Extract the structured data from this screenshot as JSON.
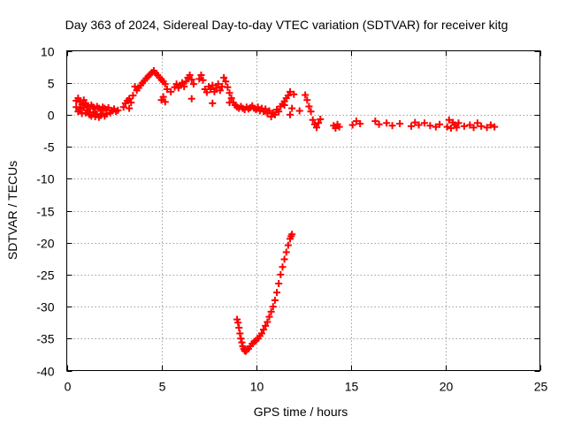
{
  "chart_data": {
    "type": "scatter",
    "title": "Day 363 of 2024, Sidereal Day-to-day VTEC variation (SDTVAR) for receiver kitg",
    "xlabel": "GPS time / hours",
    "ylabel": "SDTVAR / TECUs",
    "xlim": [
      0,
      25
    ],
    "ylim": [
      -40,
      10
    ],
    "xticks": [
      0,
      5,
      10,
      15,
      20,
      25
    ],
    "yticks": [
      10,
      5,
      0,
      -5,
      -10,
      -15,
      -20,
      -25,
      -30,
      -35,
      -40
    ],
    "xtick_labels": [
      "0",
      "5",
      "10",
      "15",
      "20",
      "25"
    ],
    "ytick_labels": [
      "10",
      "5",
      "0",
      "-5",
      "-10",
      "-15",
      "-20",
      "-25",
      "-30",
      "-35",
      "-40"
    ],
    "grid": true,
    "marker": "+",
    "colors": {
      "series": "#ff0000",
      "grid": "#a0a0a0",
      "axis": "#000000"
    },
    "series": [
      {
        "name": "main",
        "points": [
          [
            0.5,
            2.2
          ],
          [
            0.5,
            1.2
          ],
          [
            0.6,
            2.6
          ],
          [
            0.6,
            0.5
          ],
          [
            0.7,
            2.0
          ],
          [
            0.7,
            0.9
          ],
          [
            0.8,
            1.6
          ],
          [
            0.8,
            0.2
          ],
          [
            0.9,
            2.3
          ],
          [
            0.9,
            1.1
          ],
          [
            1.0,
            1.8
          ],
          [
            1.0,
            0.3
          ],
          [
            1.1,
            1.4
          ],
          [
            1.1,
            0.7
          ],
          [
            1.2,
            1.0
          ],
          [
            1.2,
            0.0
          ],
          [
            1.3,
            1.5
          ],
          [
            1.3,
            -0.2
          ],
          [
            1.4,
            1.2
          ],
          [
            1.4,
            0.4
          ],
          [
            1.5,
            0.9
          ],
          [
            1.5,
            -0.3
          ],
          [
            1.6,
            1.3
          ],
          [
            1.6,
            0.1
          ],
          [
            1.7,
            1.0
          ],
          [
            1.7,
            -0.4
          ],
          [
            1.8,
            0.8
          ],
          [
            1.8,
            -0.1
          ],
          [
            1.9,
            1.2
          ],
          [
            1.9,
            0.2
          ],
          [
            2.0,
            1.0
          ],
          [
            2.0,
            -0.2
          ],
          [
            2.1,
            0.8
          ],
          [
            2.1,
            0.1
          ],
          [
            2.2,
            1.1
          ],
          [
            2.3,
            0.3
          ],
          [
            2.4,
            0.6
          ],
          [
            2.5,
            0.9
          ],
          [
            2.6,
            0.5
          ],
          [
            2.7,
            0.7
          ],
          [
            3.0,
            1.2
          ],
          [
            3.1,
            1.8
          ],
          [
            3.2,
            2.2
          ],
          [
            3.3,
            2.5
          ],
          [
            3.4,
            1.9
          ],
          [
            3.5,
            3.0
          ],
          [
            3.3,
            1.0
          ],
          [
            3.6,
            4.4
          ],
          [
            3.7,
            3.8
          ],
          [
            3.8,
            4.2
          ],
          [
            3.9,
            4.6
          ],
          [
            4.0,
            5.0
          ],
          [
            4.1,
            5.3
          ],
          [
            4.2,
            5.7
          ],
          [
            4.3,
            6.0
          ],
          [
            4.4,
            6.3
          ],
          [
            4.5,
            6.6
          ],
          [
            4.6,
            6.9
          ],
          [
            4.7,
            6.5
          ],
          [
            4.8,
            6.2
          ],
          [
            4.9,
            5.8
          ],
          [
            5.0,
            5.5
          ],
          [
            5.1,
            5.2
          ],
          [
            5.2,
            4.8
          ],
          [
            5.3,
            4.0
          ],
          [
            5.0,
            2.3
          ],
          [
            5.1,
            2.8
          ],
          [
            5.2,
            2.0
          ],
          [
            5.5,
            3.6
          ],
          [
            5.7,
            4.3
          ],
          [
            5.8,
            4.8
          ],
          [
            5.9,
            4.2
          ],
          [
            6.0,
            4.6
          ],
          [
            6.1,
            5.0
          ],
          [
            6.2,
            4.4
          ],
          [
            6.3,
            5.2
          ],
          [
            6.4,
            5.8
          ],
          [
            6.5,
            6.2
          ],
          [
            6.6,
            5.5
          ],
          [
            6.7,
            4.8
          ],
          [
            6.6,
            2.5
          ],
          [
            7.0,
            5.6
          ],
          [
            7.1,
            6.2
          ],
          [
            7.2,
            5.4
          ],
          [
            7.3,
            4.0
          ],
          [
            7.4,
            3.5
          ],
          [
            7.5,
            4.4
          ],
          [
            7.6,
            4.0
          ],
          [
            7.7,
            4.6
          ],
          [
            7.8,
            3.6
          ],
          [
            7.9,
            4.2
          ],
          [
            8.0,
            4.8
          ],
          [
            8.1,
            3.8
          ],
          [
            8.2,
            4.4
          ],
          [
            8.3,
            5.8
          ],
          [
            8.4,
            5.2
          ],
          [
            8.5,
            4.3
          ],
          [
            8.6,
            3.4
          ],
          [
            8.7,
            2.6
          ],
          [
            8.8,
            1.9
          ],
          [
            8.9,
            1.5
          ],
          [
            9.0,
            1.2
          ],
          [
            9.1,
            1.0
          ],
          [
            8.6,
            1.9
          ],
          [
            7.7,
            1.8
          ],
          [
            9.2,
            1.3
          ],
          [
            9.3,
            1.0
          ],
          [
            9.4,
            0.8
          ],
          [
            9.5,
            1.2
          ],
          [
            9.6,
            0.9
          ],
          [
            9.7,
            1.1
          ],
          [
            9.8,
            1.4
          ],
          [
            9.9,
            1.0
          ],
          [
            10.0,
            0.8
          ],
          [
            10.1,
            1.2
          ],
          [
            10.2,
            0.6
          ],
          [
            10.3,
            1.0
          ],
          [
            10.4,
            0.5
          ],
          [
            10.5,
            0.9
          ],
          [
            10.6,
            0.2
          ],
          [
            10.7,
            0.6
          ],
          [
            10.8,
            -0.3
          ],
          [
            10.9,
            0.3
          ],
          [
            11.0,
            0.0
          ],
          [
            11.1,
            0.8
          ],
          [
            11.2,
            0.5
          ],
          [
            11.3,
            1.3
          ],
          [
            11.4,
            1.7
          ],
          [
            11.5,
            2.1
          ],
          [
            11.6,
            2.6
          ],
          [
            11.7,
            3.0
          ],
          [
            11.8,
            3.6
          ],
          [
            11.5,
            1.5
          ],
          [
            11.9,
            1.0
          ],
          [
            12.0,
            3.2
          ],
          [
            11.8,
            0.0
          ],
          [
            12.3,
            0.6
          ],
          [
            12.6,
            3.1
          ],
          [
            12.7,
            2.3
          ],
          [
            12.8,
            1.3
          ],
          [
            12.9,
            0.5
          ],
          [
            13.0,
            -0.8
          ],
          [
            13.1,
            -1.5
          ],
          [
            13.2,
            -2.0
          ],
          [
            13.3,
            -1.3
          ],
          [
            13.4,
            -0.7
          ],
          [
            14.1,
            -1.7
          ],
          [
            14.2,
            -2.1
          ],
          [
            14.3,
            -1.5
          ],
          [
            14.4,
            -1.9
          ],
          [
            15.1,
            -1.6
          ],
          [
            15.3,
            -1.0
          ],
          [
            15.5,
            -1.4
          ],
          [
            16.3,
            -1.0
          ],
          [
            16.5,
            -1.5
          ],
          [
            16.9,
            -1.3
          ],
          [
            17.2,
            -1.7
          ],
          [
            17.6,
            -1.4
          ],
          [
            18.2,
            -1.8
          ],
          [
            18.4,
            -1.2
          ],
          [
            18.6,
            -1.6
          ],
          [
            18.9,
            -1.3
          ],
          [
            19.2,
            -1.7
          ],
          [
            19.5,
            -1.9
          ],
          [
            19.7,
            -1.5
          ],
          [
            20.1,
            -1.9
          ],
          [
            20.2,
            -0.8
          ],
          [
            20.3,
            -2.1
          ],
          [
            20.4,
            -1.2
          ],
          [
            20.5,
            -1.6
          ],
          [
            20.6,
            -2.0
          ],
          [
            20.7,
            -1.3
          ],
          [
            21.0,
            -1.8
          ],
          [
            21.3,
            -1.6
          ],
          [
            21.5,
            -2.0
          ],
          [
            21.7,
            -1.3
          ],
          [
            21.9,
            -1.8
          ],
          [
            22.2,
            -2.0
          ],
          [
            22.4,
            -1.6
          ],
          [
            22.6,
            -1.9
          ]
        ]
      },
      {
        "name": "dip",
        "points": [
          [
            9.0,
            -32.0
          ],
          [
            9.05,
            -32.5
          ],
          [
            9.1,
            -33.3
          ],
          [
            9.15,
            -34.2
          ],
          [
            9.2,
            -35.0
          ],
          [
            9.25,
            -35.6
          ],
          [
            9.3,
            -36.2
          ],
          [
            9.35,
            -36.6
          ],
          [
            9.4,
            -36.9
          ],
          [
            9.45,
            -37.0
          ],
          [
            9.5,
            -36.8
          ],
          [
            9.6,
            -36.6
          ],
          [
            9.7,
            -36.2
          ],
          [
            9.8,
            -35.8
          ],
          [
            9.9,
            -35.5
          ],
          [
            10.0,
            -35.3
          ],
          [
            10.1,
            -35.0
          ],
          [
            10.2,
            -34.6
          ],
          [
            10.3,
            -34.2
          ],
          [
            10.4,
            -33.6
          ],
          [
            10.5,
            -33.0
          ],
          [
            10.6,
            -32.4
          ],
          [
            10.7,
            -31.6
          ],
          [
            10.8,
            -30.8
          ],
          [
            10.9,
            -30.0
          ],
          [
            11.0,
            -29.0
          ],
          [
            11.1,
            -27.8
          ],
          [
            11.2,
            -26.4
          ],
          [
            11.3,
            -25.0
          ],
          [
            11.4,
            -23.8
          ],
          [
            11.5,
            -22.6
          ],
          [
            11.6,
            -21.5
          ],
          [
            11.7,
            -20.4
          ],
          [
            11.8,
            -19.4
          ],
          [
            11.85,
            -19.0
          ],
          [
            11.9,
            -18.7
          ]
        ]
      }
    ]
  }
}
